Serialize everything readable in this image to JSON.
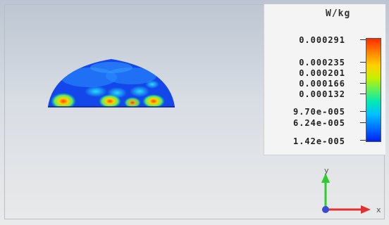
{
  "legend": {
    "unit": "W/kg",
    "labels": [
      "0.000291",
      "0.000235",
      "0.000201",
      "0.000166",
      "0.000132",
      "9.70e-005",
      "6.24e-005",
      "1.42e-005"
    ]
  },
  "axes": {
    "y_label": "y",
    "x_label": "x"
  }
}
